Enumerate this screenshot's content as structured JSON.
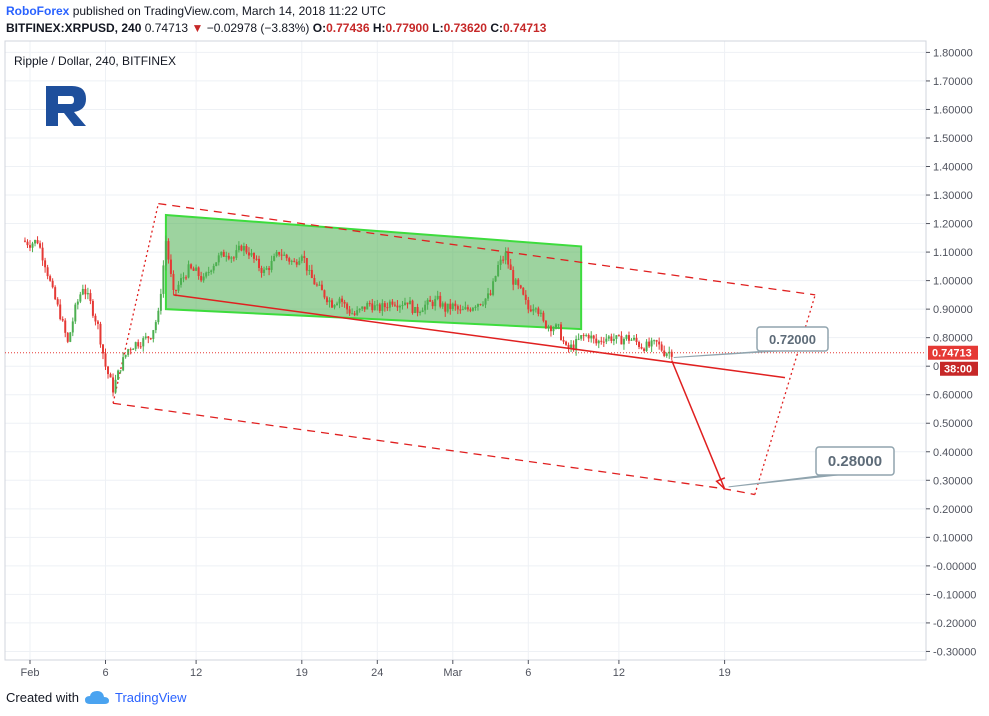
{
  "header": {
    "publisher": "RoboForex",
    "published_text": "published on TradingView.com, March 14, 2018 11:22 UTC",
    "symbol": "BITFINEX:XRPUSD, 240",
    "last": "0.74713",
    "change": "−0.02978 (−3.83%)",
    "o_label": "O:",
    "o_value": "0.77436",
    "h_label": "H:",
    "h_value": "0.77900",
    "l_label": "L:",
    "l_value": "0.73620",
    "c_label": "C:",
    "c_value": "0.74713"
  },
  "legend_title": "Ripple / Dollar, 240, BITFINEX",
  "footer": {
    "created_with": "Created with",
    "brand": "TradingView"
  },
  "colors": {
    "up": "#4caf50",
    "down": "#e53935",
    "trend": "#e02020",
    "box_fill": "rgba(76,175,80,0.55)",
    "box_stroke": "#3ddc3d",
    "axis": "#50535e",
    "grid": "#eef1f5",
    "logo": "#1e4f9c"
  },
  "price_badge": {
    "value": "0.74713",
    "timer": "38:00"
  },
  "annotations": [
    {
      "label": "0.72000"
    },
    {
      "label": "0.28000"
    }
  ],
  "chart_data": {
    "type": "candlestick",
    "ylim": [
      -0.33,
      1.84
    ],
    "yticks": [
      "1.80000",
      "1.70000",
      "1.60000",
      "1.50000",
      "1.40000",
      "1.30000",
      "1.20000",
      "1.10000",
      "1.00000",
      "0.90000",
      "0.80000",
      "0.70000",
      "0.60000",
      "0.50000",
      "0.40000",
      "0.30000",
      "0.20000",
      "0.10000",
      "-0.00000",
      "-0.10000",
      "-0.20000",
      "-0.30000"
    ],
    "yvalues": [
      1.8,
      1.7,
      1.6,
      1.5,
      1.4,
      1.3,
      1.2,
      1.1,
      1.0,
      0.9,
      0.8,
      0.7,
      0.6,
      0.5,
      0.4,
      0.3,
      0.2,
      0.1,
      0.0,
      -0.1,
      -0.2,
      -0.3
    ],
    "xticks": [
      {
        "label": "Feb",
        "day": 0
      },
      {
        "label": "6",
        "day": 5
      },
      {
        "label": "12",
        "day": 11
      },
      {
        "label": "19",
        "day": 18
      },
      {
        "label": "24",
        "day": 23
      },
      {
        "label": "Mar",
        "day": 28
      },
      {
        "label": "6",
        "day": 33
      },
      {
        "label": "12",
        "day": 39
      },
      {
        "label": "19",
        "day": 46
      }
    ],
    "close_path": [
      [
        -0.5,
        1.14
      ],
      [
        0,
        1.13
      ],
      [
        0.5,
        1.14
      ],
      [
        1,
        1.06
      ],
      [
        1.5,
        0.96
      ],
      [
        2,
        0.88
      ],
      [
        2.5,
        0.78
      ],
      [
        3,
        0.9
      ],
      [
        3.5,
        0.98
      ],
      [
        4,
        0.92
      ],
      [
        4.5,
        0.84
      ],
      [
        5,
        0.7
      ],
      [
        5.5,
        0.62
      ],
      [
        6,
        0.7
      ],
      [
        6.5,
        0.76
      ],
      [
        7,
        0.78
      ],
      [
        7.5,
        0.79
      ],
      [
        8,
        0.81
      ],
      [
        8.5,
        0.88
      ],
      [
        9,
        1.14
      ],
      [
        9.5,
        0.95
      ],
      [
        10,
        1.0
      ],
      [
        10.5,
        1.04
      ],
      [
        11,
        1.03
      ],
      [
        11.5,
        1.0
      ],
      [
        12,
        1.05
      ],
      [
        12.5,
        1.08
      ],
      [
        13,
        1.1
      ],
      [
        13.5,
        1.08
      ],
      [
        14,
        1.12
      ],
      [
        14.5,
        1.1
      ],
      [
        15,
        1.06
      ],
      [
        15.5,
        1.03
      ],
      [
        16,
        1.06
      ],
      [
        16.5,
        1.1
      ],
      [
        17,
        1.08
      ],
      [
        17.5,
        1.06
      ],
      [
        18,
        1.1
      ],
      [
        18.5,
        1.02
      ],
      [
        19,
        0.98
      ],
      [
        19.5,
        0.95
      ],
      [
        20,
        0.92
      ],
      [
        20.5,
        0.94
      ],
      [
        21,
        0.9
      ],
      [
        21.5,
        0.88
      ],
      [
        22,
        0.9
      ],
      [
        22.5,
        0.92
      ],
      [
        23,
        0.9
      ],
      [
        23.5,
        0.91
      ],
      [
        24,
        0.93
      ],
      [
        24.5,
        0.92
      ],
      [
        25,
        0.93
      ],
      [
        25.5,
        0.89
      ],
      [
        26,
        0.91
      ],
      [
        26.5,
        0.92
      ],
      [
        27,
        0.93
      ],
      [
        27.5,
        0.9
      ],
      [
        28,
        0.91
      ],
      [
        28.5,
        0.89
      ],
      [
        29,
        0.9
      ],
      [
        29.5,
        0.92
      ],
      [
        30,
        0.93
      ],
      [
        30.5,
        0.95
      ],
      [
        31,
        1.05
      ],
      [
        31.5,
        1.09
      ],
      [
        32,
        1.0
      ],
      [
        32.5,
        0.96
      ],
      [
        33,
        0.9
      ],
      [
        33.5,
        0.92
      ],
      [
        34,
        0.85
      ],
      [
        34.5,
        0.84
      ],
      [
        35,
        0.83
      ],
      [
        35.5,
        0.76
      ],
      [
        36,
        0.77
      ],
      [
        36.5,
        0.8
      ],
      [
        37,
        0.81
      ],
      [
        37.5,
        0.78
      ],
      [
        38,
        0.8
      ],
      [
        38.5,
        0.8
      ],
      [
        39,
        0.79
      ],
      [
        39.5,
        0.8
      ],
      [
        40,
        0.79
      ],
      [
        40.5,
        0.77
      ],
      [
        41,
        0.77
      ],
      [
        41.5,
        0.78
      ],
      [
        42,
        0.75
      ],
      [
        42.5,
        0.75
      ]
    ],
    "highlight_box": {
      "points": [
        [
          9,
          1.23
        ],
        [
          36.5,
          1.12
        ],
        [
          36.5,
          0.83
        ],
        [
          9,
          0.9
        ]
      ]
    },
    "channel": {
      "upper": [
        [
          8.5,
          1.27
        ],
        [
          52,
          0.95
        ]
      ],
      "lower": [
        [
          5.5,
          0.57
        ],
        [
          46,
          0.27
        ],
        [
          48,
          0.25
        ]
      ],
      "left": [
        [
          5.5,
          0.57
        ],
        [
          8.5,
          1.27
        ]
      ],
      "right": [
        [
          48,
          0.25
        ],
        [
          52,
          0.95
        ]
      ]
    },
    "trend_line": [
      [
        9.5,
        0.95
      ],
      [
        50,
        0.66
      ]
    ],
    "target_arrow": [
      [
        42.5,
        0.72
      ],
      [
        46,
        0.27
      ]
    ],
    "current_price": 0.74713
  }
}
